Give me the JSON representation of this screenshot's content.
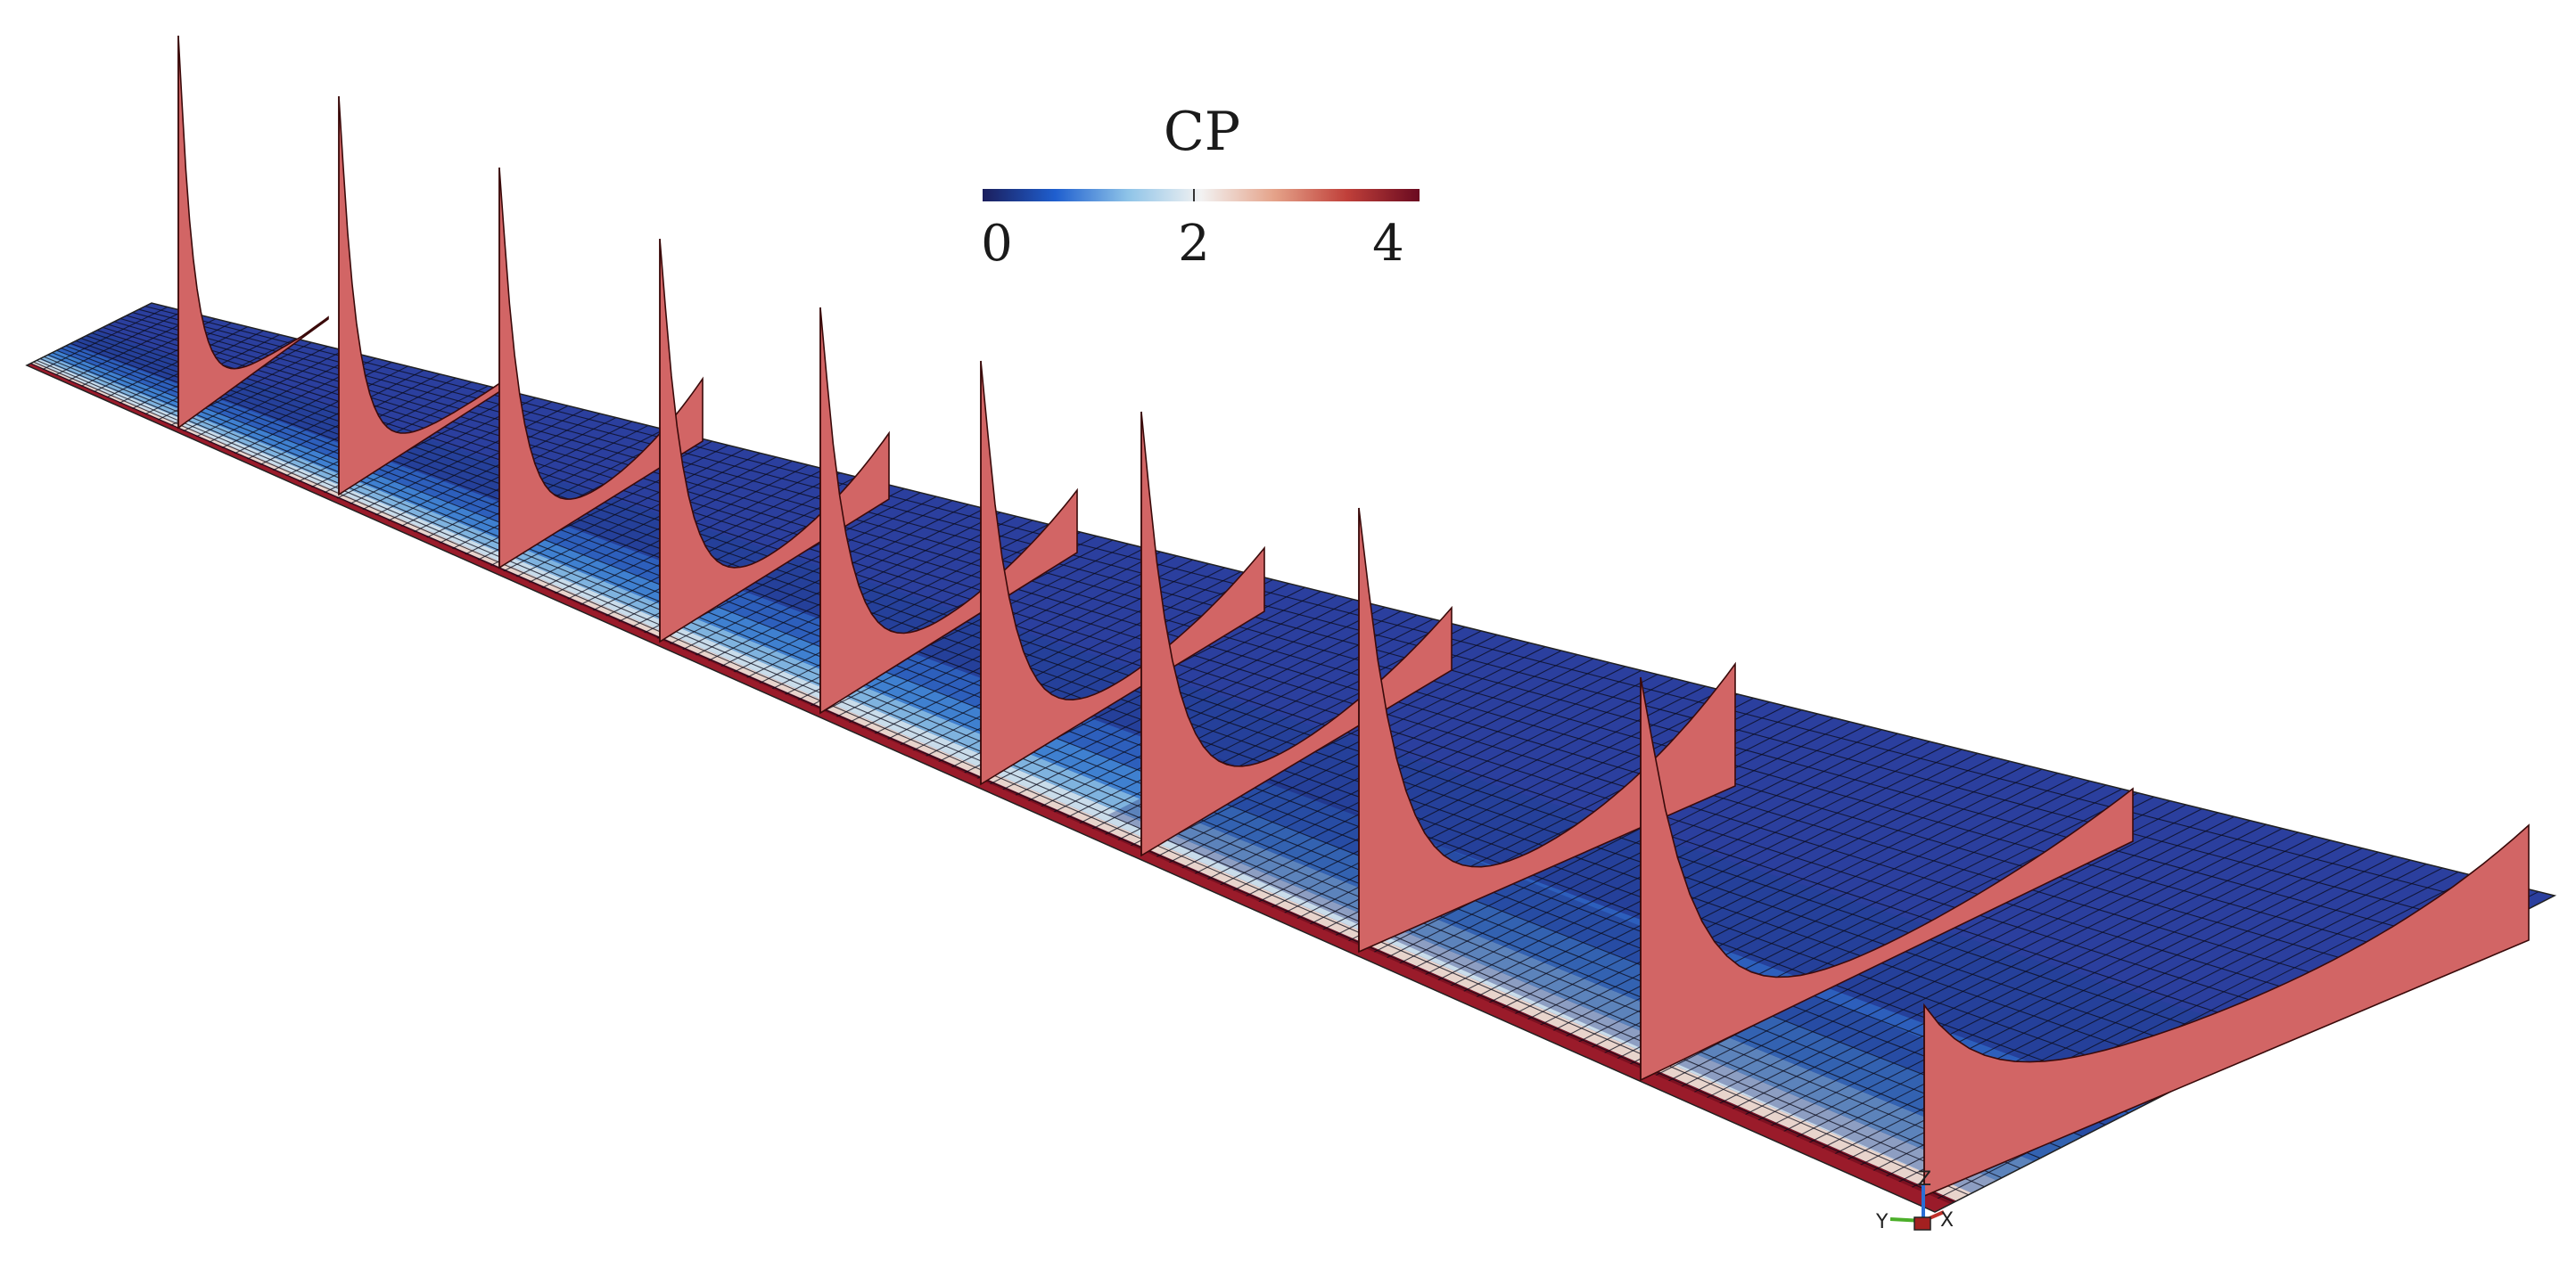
{
  "colorbar": {
    "title": "CP",
    "ticks": [
      "0",
      "2",
      "4"
    ],
    "range": [
      0,
      4.5
    ],
    "colors": [
      "#1b1e5c",
      "#1f5fcf",
      "#8fc4e8",
      "#f2f2f2",
      "#e5a38a",
      "#c0403a",
      "#6a0a20"
    ]
  },
  "surface": {
    "upper_color": "#2b3f9e",
    "leading_edge_color": "#9a1b2a",
    "mesh_line_color": "#0b0b1a"
  },
  "slices": {
    "count": 10,
    "fill_color": "#d26565",
    "edge_color": "#3a0a0a"
  },
  "triad": {
    "labels": [
      "Z",
      "Y",
      "X"
    ]
  }
}
